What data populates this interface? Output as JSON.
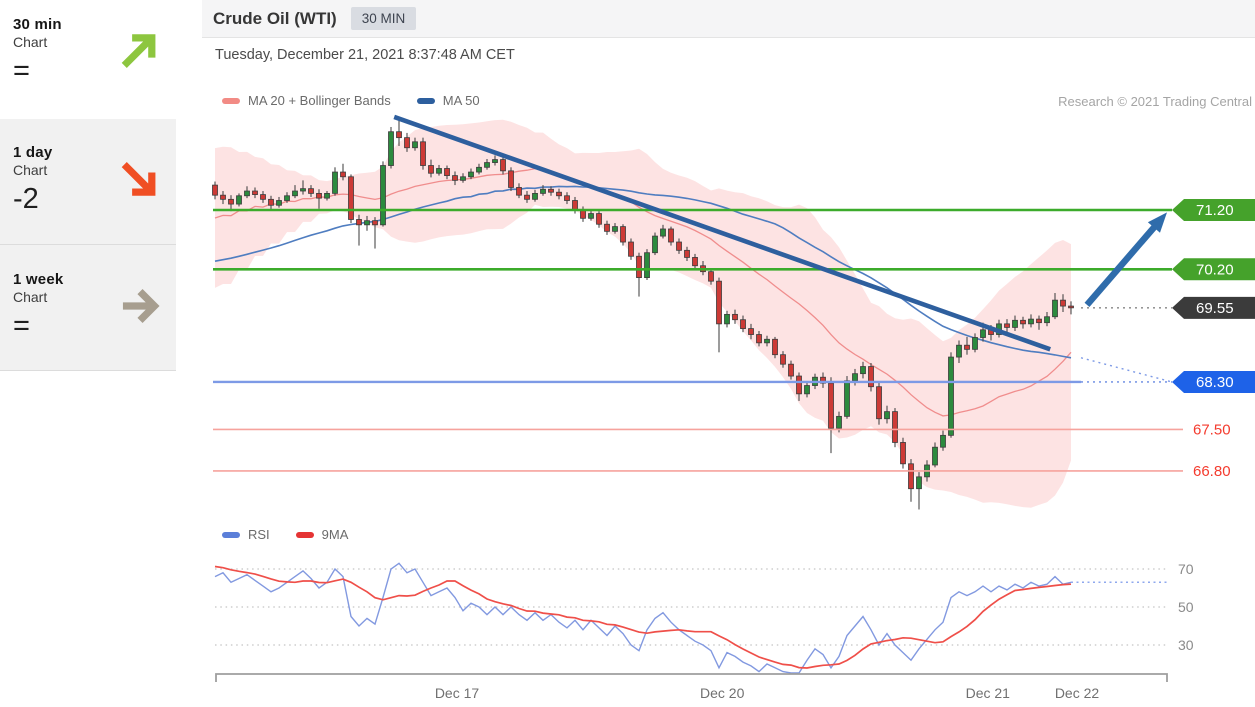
{
  "header": {
    "title": "Crude Oil (WTI)",
    "interval_badge": "30 MIN",
    "timestamp": "Tuesday, December 21, 2021 8:37:48 AM CET",
    "research_note": "Research © 2021 Trading Central"
  },
  "sidebar": {
    "items": [
      {
        "timeframe": "30 min",
        "label": "Chart",
        "value": "=",
        "direction": "up-right",
        "color": "#8DC63F"
      },
      {
        "timeframe": "1 day",
        "label": "Chart",
        "value": "-2",
        "direction": "down-right",
        "color": "#F04E23"
      },
      {
        "timeframe": "1 week",
        "label": "Chart",
        "value": "=",
        "direction": "right",
        "color": "#A79E8F"
      }
    ]
  },
  "chart_data": [
    {
      "type": "candlestick",
      "title": "Crude Oil (WTI) 30 MIN",
      "y_range": [
        66.0,
        72.9
      ],
      "grid": false,
      "legend": [
        {
          "label": "MA 20 + Bollinger Bands",
          "color": "#f28b85"
        },
        {
          "label": "MA 50",
          "color": "#2d5f9e"
        }
      ],
      "research_note": "Research © 2021 Trading Central",
      "x_labels": [
        {
          "label": "Dec 17",
          "i": 30.25
        },
        {
          "label": "Dec 20",
          "i": 63.4
        },
        {
          "label": "Dec 21",
          "i": 96.6
        },
        {
          "label": "Dec 22",
          "i": 107.75
        }
      ],
      "prehistory_closes": [
        70.2,
        70.1,
        70.0,
        69.9,
        69.8,
        69.7,
        69.6,
        69.5,
        69.4,
        69.3,
        69.2,
        69.3,
        69.4,
        69.5,
        69.6,
        69.7,
        69.8,
        69.9,
        70.0,
        70.1,
        70.2,
        70.3,
        70.4,
        70.3,
        70.2,
        70.1,
        70.0,
        70.1,
        70.2,
        70.3,
        69.6,
        70.5,
        71.4,
        69.8,
        71.5,
        70.0,
        71.6,
        70.2,
        71.5,
        70.4,
        71.6,
        70.6,
        71.5,
        70.8,
        71.6,
        71.0,
        71.55,
        71.2,
        71.6,
        71.5
      ],
      "candles": [
        [
          71.62,
          71.68,
          71.38,
          71.45
        ],
        [
          71.45,
          71.52,
          71.3,
          71.38
        ],
        [
          71.38,
          71.45,
          71.18,
          71.3
        ],
        [
          71.3,
          71.48,
          71.26,
          71.44
        ],
        [
          71.44,
          71.6,
          71.4,
          71.52
        ],
        [
          71.52,
          71.58,
          71.4,
          71.46
        ],
        [
          71.46,
          71.52,
          71.32,
          71.38
        ],
        [
          71.38,
          71.44,
          71.2,
          71.28
        ],
        [
          71.28,
          71.42,
          71.24,
          71.36
        ],
        [
          71.36,
          71.5,
          71.32,
          71.44
        ],
        [
          71.44,
          71.62,
          71.4,
          71.52
        ],
        [
          71.52,
          71.7,
          71.46,
          71.56
        ],
        [
          71.56,
          71.62,
          71.42,
          71.48
        ],
        [
          71.48,
          71.55,
          71.22,
          71.4
        ],
        [
          71.4,
          71.52,
          71.36,
          71.48
        ],
        [
          71.48,
          71.92,
          71.44,
          71.84
        ],
        [
          71.84,
          71.98,
          71.7,
          71.76
        ],
        [
          71.76,
          71.8,
          70.98,
          71.04
        ],
        [
          71.04,
          71.12,
          70.6,
          70.95
        ],
        [
          70.95,
          71.1,
          70.85,
          71.02
        ],
        [
          71.02,
          71.08,
          70.55,
          70.95
        ],
        [
          70.95,
          72.02,
          70.92,
          71.95
        ],
        [
          71.95,
          72.6,
          71.9,
          72.52
        ],
        [
          72.52,
          72.77,
          72.28,
          72.42
        ],
        [
          72.42,
          72.5,
          72.18,
          72.25
        ],
        [
          72.25,
          72.42,
          72.2,
          72.35
        ],
        [
          72.35,
          72.42,
          71.88,
          71.95
        ],
        [
          71.95,
          72.05,
          71.75,
          71.82
        ],
        [
          71.82,
          71.96,
          71.78,
          71.9
        ],
        [
          71.9,
          71.95,
          71.72,
          71.78
        ],
        [
          71.78,
          71.85,
          71.62,
          71.7
        ],
        [
          71.7,
          71.82,
          71.66,
          71.76
        ],
        [
          71.76,
          71.9,
          71.72,
          71.84
        ],
        [
          71.84,
          71.98,
          71.8,
          71.92
        ],
        [
          71.92,
          72.06,
          71.88,
          72.0
        ],
        [
          72.0,
          72.12,
          71.95,
          72.05
        ],
        [
          72.05,
          72.1,
          71.8,
          71.86
        ],
        [
          71.86,
          71.92,
          71.52,
          71.58
        ],
        [
          71.58,
          71.65,
          71.4,
          71.45
        ],
        [
          71.45,
          71.52,
          71.32,
          71.38
        ],
        [
          71.38,
          71.54,
          71.34,
          71.48
        ],
        [
          71.48,
          71.62,
          71.44,
          71.55
        ],
        [
          71.55,
          71.6,
          71.44,
          71.5
        ],
        [
          71.5,
          71.56,
          71.38,
          71.44
        ],
        [
          71.44,
          71.5,
          71.3,
          71.36
        ],
        [
          71.36,
          71.42,
          71.14,
          71.2
        ],
        [
          71.2,
          71.26,
          71.0,
          71.06
        ],
        [
          71.06,
          71.2,
          71.02,
          71.14
        ],
        [
          71.14,
          71.18,
          70.9,
          70.96
        ],
        [
          70.96,
          71.02,
          70.78,
          70.84
        ],
        [
          70.84,
          70.98,
          70.8,
          70.92
        ],
        [
          70.92,
          70.96,
          70.6,
          70.66
        ],
        [
          70.66,
          70.72,
          70.36,
          70.42
        ],
        [
          70.42,
          70.48,
          69.74,
          70.06
        ],
        [
          70.06,
          70.54,
          70.02,
          70.48
        ],
        [
          70.48,
          70.82,
          70.44,
          70.76
        ],
        [
          70.76,
          70.95,
          70.72,
          70.88
        ],
        [
          70.88,
          70.92,
          70.6,
          70.66
        ],
        [
          70.66,
          70.72,
          70.46,
          70.52
        ],
        [
          70.52,
          70.58,
          70.34,
          70.4
        ],
        [
          70.4,
          70.46,
          70.2,
          70.26
        ],
        [
          70.26,
          70.34,
          70.1,
          70.16
        ],
        [
          70.16,
          70.22,
          69.94,
          70.0
        ],
        [
          70.0,
          70.06,
          68.8,
          69.28
        ],
        [
          69.28,
          69.5,
          69.22,
          69.44
        ],
        [
          69.44,
          69.52,
          69.28,
          69.35
        ],
        [
          69.35,
          69.42,
          69.14,
          69.2
        ],
        [
          69.2,
          69.28,
          69.02,
          69.1
        ],
        [
          69.1,
          69.16,
          68.9,
          68.96
        ],
        [
          68.96,
          69.08,
          68.9,
          69.02
        ],
        [
          69.02,
          69.06,
          68.7,
          68.76
        ],
        [
          68.76,
          68.82,
          68.54,
          68.6
        ],
        [
          68.6,
          68.66,
          68.34,
          68.4
        ],
        [
          68.4,
          68.46,
          67.98,
          68.1
        ],
        [
          68.1,
          68.3,
          68.04,
          68.24
        ],
        [
          68.24,
          68.44,
          68.18,
          68.38
        ],
        [
          68.38,
          68.46,
          68.2,
          68.28
        ],
        [
          68.28,
          68.38,
          67.1,
          67.52
        ],
        [
          67.52,
          67.8,
          67.45,
          67.72
        ],
        [
          67.72,
          68.4,
          67.68,
          68.32
        ],
        [
          68.32,
          68.52,
          68.24,
          68.44
        ],
        [
          68.44,
          68.64,
          68.36,
          68.56
        ],
        [
          68.56,
          68.62,
          68.14,
          68.22
        ],
        [
          68.22,
          68.3,
          67.58,
          67.68
        ],
        [
          67.68,
          67.9,
          67.6,
          67.8
        ],
        [
          67.8,
          67.86,
          67.2,
          67.28
        ],
        [
          67.28,
          67.36,
          66.84,
          66.92
        ],
        [
          66.92,
          67.0,
          66.28,
          66.5
        ],
        [
          66.5,
          66.78,
          66.15,
          66.7
        ],
        [
          66.7,
          66.98,
          66.62,
          66.9
        ],
        [
          66.9,
          67.28,
          66.86,
          67.2
        ],
        [
          67.2,
          67.48,
          67.14,
          67.4
        ],
        [
          67.4,
          68.8,
          67.36,
          68.72
        ],
        [
          68.72,
          69.0,
          68.62,
          68.92
        ],
        [
          68.92,
          69.06,
          68.76,
          68.85
        ],
        [
          68.85,
          69.12,
          68.8,
          69.05
        ],
        [
          69.05,
          69.3,
          68.98,
          69.18
        ],
        [
          69.18,
          69.26,
          69.0,
          69.1
        ],
        [
          69.1,
          69.35,
          69.05,
          69.28
        ],
        [
          69.28,
          69.36,
          69.12,
          69.22
        ],
        [
          69.22,
          69.42,
          69.16,
          69.34
        ],
        [
          69.34,
          69.4,
          69.2,
          69.28
        ],
        [
          69.28,
          69.44,
          69.22,
          69.36
        ],
        [
          69.36,
          69.42,
          69.18,
          69.3
        ],
        [
          69.3,
          69.48,
          69.24,
          69.4
        ],
        [
          69.4,
          69.8,
          69.36,
          69.68
        ],
        [
          69.68,
          69.78,
          69.48,
          69.58
        ],
        [
          69.58,
          69.66,
          69.44,
          69.55
        ]
      ],
      "indicators": {
        "ma20": {
          "window": 20,
          "color": "#f08d8d"
        },
        "ma50": {
          "window": 50,
          "color": "#4f7dc0"
        },
        "bollinger": {
          "window": 20,
          "mult": 2,
          "fill": "rgba(244,116,116,0.20)"
        }
      },
      "levels": [
        {
          "price": 71.2,
          "label": "71.20",
          "line_color": "#3cab2b",
          "line_width": 2.6,
          "span": "full",
          "badge": "#45a22b"
        },
        {
          "price": 70.2,
          "label": "70.20",
          "line_color": "#3cab2b",
          "line_width": 2.6,
          "span": "full",
          "badge": "#45a22b"
        },
        {
          "price": 69.55,
          "label": "69.55",
          "line_color": "#969696",
          "line_width": 1.6,
          "span": "tail",
          "badge": "#3b3b3b"
        },
        {
          "price": 68.3,
          "label": "68.30",
          "line_color": "#7d9ae6",
          "line_width": 2.4,
          "span": "full-tail",
          "badge": "#1e62e8"
        },
        {
          "price": 67.5,
          "label": "67.50",
          "line_color": "#f6a39d",
          "line_width": 1.6,
          "span": "text",
          "text_color": "#f43b2e"
        },
        {
          "price": 66.8,
          "label": "66.80",
          "line_color": "#f6a39d",
          "line_width": 1.6,
          "span": "text",
          "text_color": "#f43b2e"
        }
      ],
      "trendline": {
        "from": {
          "i": 22.4,
          "price": 72.77
        },
        "to": {
          "i": 104.4,
          "price": 68.85
        },
        "color": "#2e5f9e",
        "width": 4.6
      },
      "arrow": {
        "from": {
          "i": 109.0,
          "price": 69.6
        },
        "to": {
          "i": 119.0,
          "price": 71.16
        },
        "color": "#2f6cab",
        "width": 6.5
      }
    },
    {
      "type": "line",
      "name": "RSI panel",
      "legend": [
        {
          "label": "RSI",
          "color": "#5b7fd9"
        },
        {
          "label": "9MA",
          "color": "#e53434"
        }
      ],
      "y_ticks": [
        70,
        50,
        30
      ],
      "y_range": [
        10,
        80
      ],
      "rsi_prehistory": [
        74,
        73,
        72,
        73,
        71,
        72,
        70,
        71
      ],
      "rsi": [
        66,
        68,
        63,
        65,
        67,
        64,
        61,
        58,
        60,
        63,
        66,
        69,
        65,
        60,
        63,
        70,
        66,
        45,
        40,
        44,
        41,
        55,
        70,
        73,
        68,
        70,
        63,
        56,
        58,
        60,
        55,
        48,
        52,
        50,
        46,
        50,
        46,
        50,
        46,
        43,
        47,
        43,
        46,
        42,
        39,
        43,
        38,
        43,
        39,
        35,
        40,
        36,
        30,
        27,
        38,
        44,
        47,
        42,
        38,
        35,
        32,
        30,
        27,
        18,
        26,
        24,
        21,
        19,
        16,
        20,
        18,
        16,
        15,
        14,
        22,
        28,
        25,
        18,
        24,
        35,
        40,
        45,
        38,
        30,
        36,
        30,
        26,
        22,
        28,
        33,
        38,
        42,
        55,
        58,
        56,
        58,
        61,
        58,
        61,
        59,
        62,
        60,
        63,
        61,
        62,
        66,
        62,
        63
      ],
      "ma_window": 9,
      "line_colors": {
        "rsi": "#8299e0",
        "ma9": "#ef4f49"
      },
      "current_dotted": {
        "value": 63,
        "color": "#8fa8ee"
      },
      "x_labels": [
        {
          "label": "Dec 17",
          "i": 30.25
        },
        {
          "label": "Dec 20",
          "i": 63.4
        },
        {
          "label": "Dec 21",
          "i": 96.6
        },
        {
          "label": "Dec 22",
          "i": 107.75
        }
      ]
    }
  ]
}
